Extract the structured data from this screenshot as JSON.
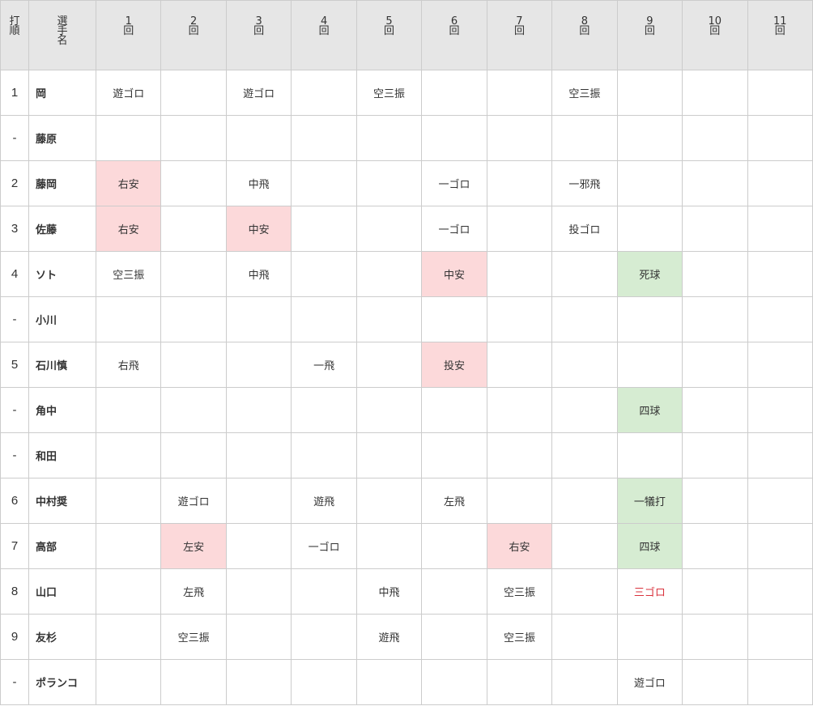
{
  "header": [
    {
      "lines": [
        "打",
        "順"
      ]
    },
    {
      "lines": [
        "選",
        "手",
        "名"
      ]
    },
    {
      "lines": [
        "1",
        "回"
      ]
    },
    {
      "lines": [
        "2",
        "回"
      ]
    },
    {
      "lines": [
        "3",
        "回"
      ]
    },
    {
      "lines": [
        "4",
        "回"
      ]
    },
    {
      "lines": [
        "5",
        "回"
      ]
    },
    {
      "lines": [
        "6",
        "回"
      ]
    },
    {
      "lines": [
        "7",
        "回"
      ]
    },
    {
      "lines": [
        "8",
        "回"
      ]
    },
    {
      "lines": [
        "9",
        "回"
      ]
    },
    {
      "lines": [
        "10",
        "回"
      ]
    },
    {
      "lines": [
        "11",
        "回"
      ]
    }
  ],
  "rows": [
    {
      "order": "1",
      "name": "岡",
      "innings": [
        "遊ゴロ",
        null,
        "遊ゴロ",
        null,
        "空三振",
        null,
        null,
        "空三振",
        null,
        null,
        null
      ]
    },
    {
      "order": "-",
      "name": "藤原",
      "innings": [
        null,
        null,
        null,
        null,
        null,
        null,
        null,
        null,
        null,
        null,
        null
      ]
    },
    {
      "order": "2",
      "name": "藤岡",
      "innings": [
        {
          "text": "右安",
          "bg": "#fcd9da"
        },
        null,
        "中飛",
        null,
        null,
        "一ゴロ",
        null,
        "一邪飛",
        null,
        null,
        null
      ]
    },
    {
      "order": "3",
      "name": "佐藤",
      "innings": [
        {
          "text": "右安",
          "bg": "#fcd9da"
        },
        null,
        {
          "text": "中安",
          "bg": "#fcd9da"
        },
        null,
        null,
        "一ゴロ",
        null,
        "投ゴロ",
        null,
        null,
        null
      ]
    },
    {
      "order": "4",
      "name": "ソト",
      "innings": [
        "空三振",
        null,
        "中飛",
        null,
        null,
        {
          "text": "中安",
          "bg": "#fcd9da"
        },
        null,
        null,
        {
          "text": "死球",
          "bg": "#d6ecd2"
        },
        null,
        null
      ]
    },
    {
      "order": "-",
      "name": "小川",
      "innings": [
        null,
        null,
        null,
        null,
        null,
        null,
        null,
        null,
        null,
        null,
        null
      ]
    },
    {
      "order": "5",
      "name": "石川慎",
      "innings": [
        "右飛",
        null,
        null,
        "一飛",
        null,
        {
          "text": "投安",
          "bg": "#fcd9da"
        },
        null,
        null,
        null,
        null,
        null
      ]
    },
    {
      "order": "-",
      "name": "角中",
      "innings": [
        null,
        null,
        null,
        null,
        null,
        null,
        null,
        null,
        {
          "text": "四球",
          "bg": "#d6ecd2"
        },
        null,
        null
      ]
    },
    {
      "order": "-",
      "name": "和田",
      "innings": [
        null,
        null,
        null,
        null,
        null,
        null,
        null,
        null,
        null,
        null,
        null
      ]
    },
    {
      "order": "6",
      "name": "中村奨",
      "innings": [
        null,
        "遊ゴロ",
        null,
        "遊飛",
        null,
        "左飛",
        null,
        null,
        {
          "text": "一犠打",
          "bg": "#d6ecd2"
        },
        null,
        null
      ]
    },
    {
      "order": "7",
      "name": "高部",
      "innings": [
        null,
        {
          "text": "左安",
          "bg": "#fcd9da"
        },
        null,
        "一ゴロ",
        null,
        null,
        {
          "text": "右安",
          "bg": "#fcd9da"
        },
        null,
        {
          "text": "四球",
          "bg": "#d6ecd2"
        },
        null,
        null
      ]
    },
    {
      "order": "8",
      "name": "山口",
      "innings": [
        null,
        "左飛",
        null,
        null,
        "中飛",
        null,
        "空三振",
        null,
        {
          "text": "三ゴロ",
          "color": "#d9323c"
        },
        null,
        null
      ]
    },
    {
      "order": "9",
      "name": "友杉",
      "innings": [
        null,
        "空三振",
        null,
        null,
        "遊飛",
        null,
        "空三振",
        null,
        null,
        null,
        null
      ]
    },
    {
      "order": "-",
      "name": "ポランコ",
      "innings": [
        null,
        null,
        null,
        null,
        null,
        null,
        null,
        null,
        "遊ゴロ",
        null,
        null
      ]
    }
  ]
}
